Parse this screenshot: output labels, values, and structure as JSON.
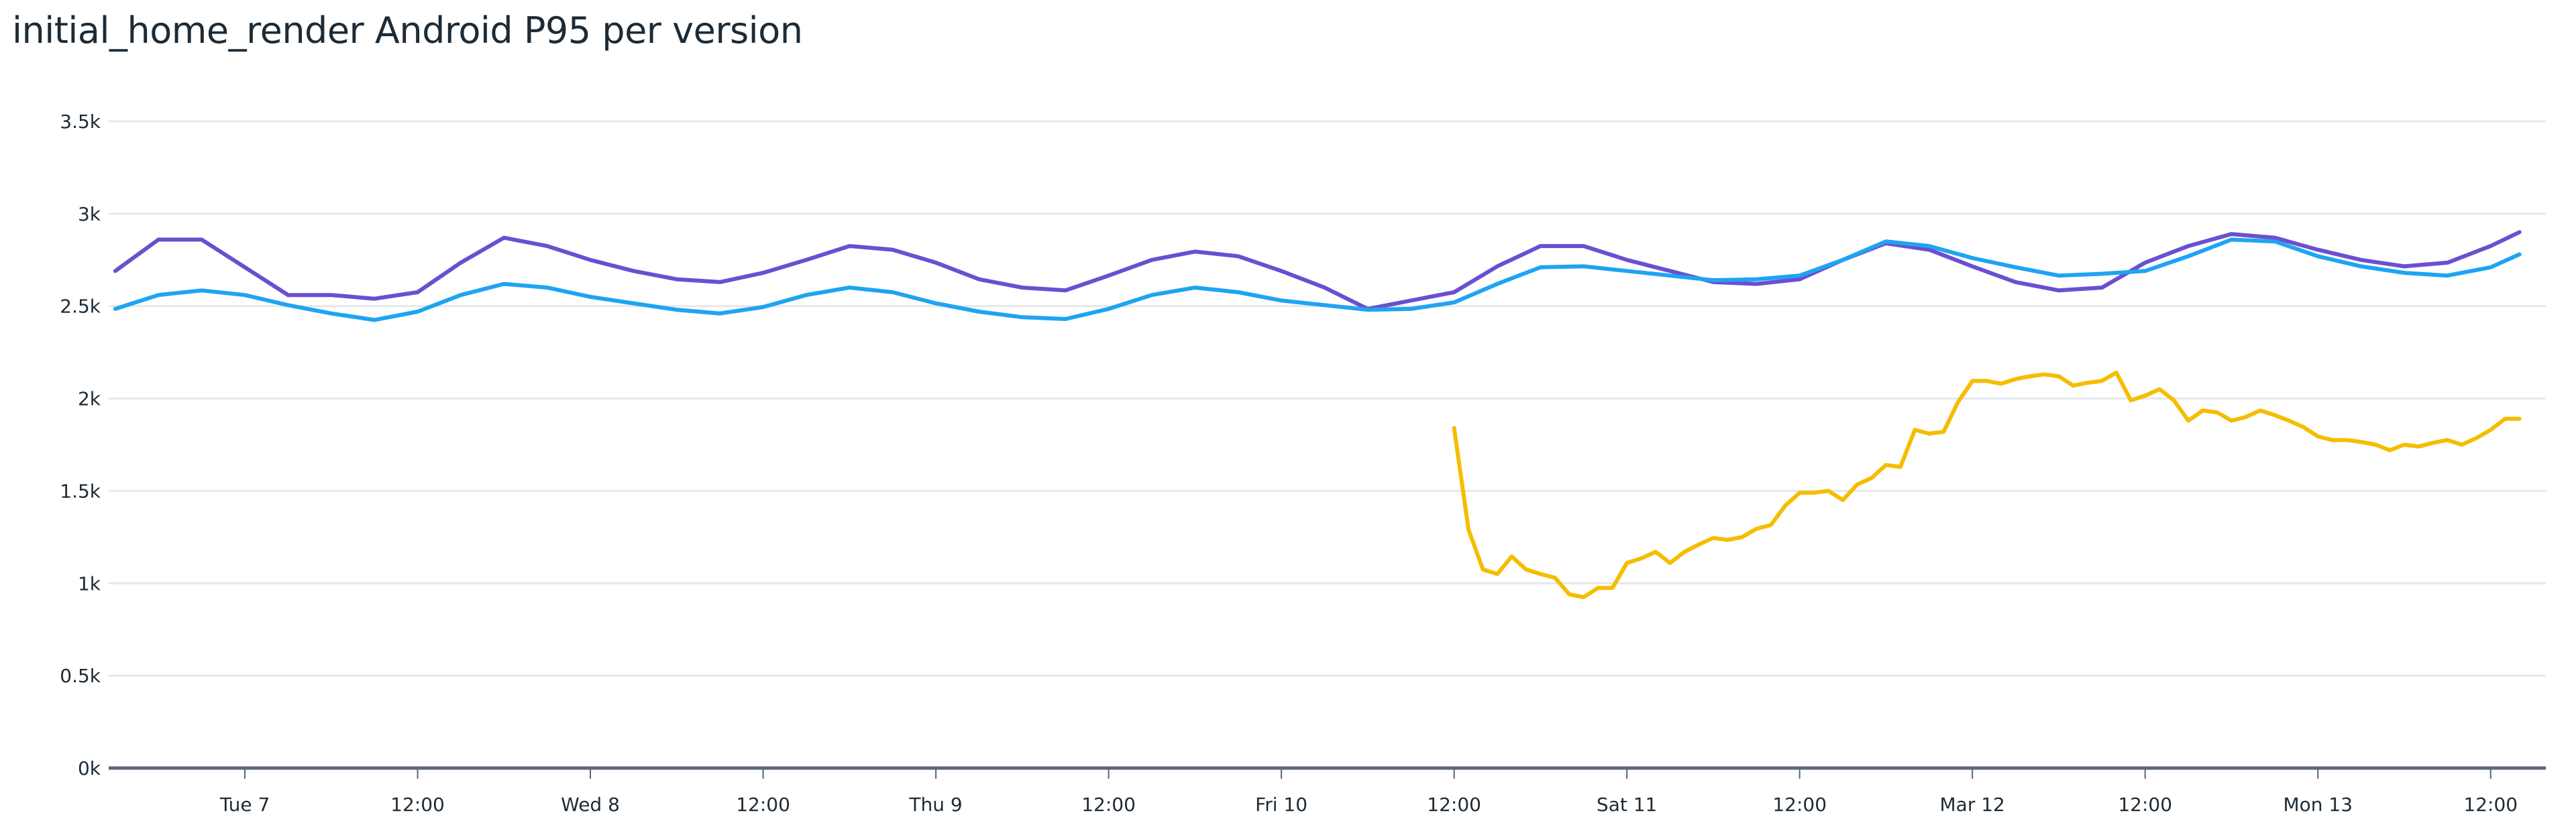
{
  "chart_data": {
    "type": "line",
    "title": "initial_home_render Android P95 per version",
    "xlabel": "",
    "ylabel": "",
    "ylim": [
      0,
      3500
    ],
    "grid": true,
    "legend": "none",
    "y_ticks": [
      "0k",
      "0.5k",
      "1k",
      "1.5k",
      "2k",
      "2.5k",
      "3k",
      "3.5k"
    ],
    "y_tick_values": [
      0,
      500,
      1000,
      1500,
      2000,
      2500,
      3000,
      3500
    ],
    "x_ticks": [
      "Tue 7",
      "12:00",
      "Wed 8",
      "12:00",
      "Thu 9",
      "12:00",
      "Fri 10",
      "12:00",
      "Sat 11",
      "12:00",
      "Mar 12",
      "12:00",
      "Mon 13",
      "12:00"
    ],
    "x_tick_values": [
      "Mar 7 00:00",
      "Mar 7 12:00",
      "Mar 8 00:00",
      "Mar 8 12:00",
      "Mar 9 00:00",
      "Mar 9 12:00",
      "Mar 10 00:00",
      "Mar 10 12:00",
      "Mar 11 00:00",
      "Mar 11 12:00",
      "Mar 12 00:00",
      "Mar 12 12:00",
      "Mar 13 00:00",
      "Mar 13 12:00"
    ],
    "series": [
      {
        "color": "#6b4fd1",
        "x": [
          "Mar 6 15:00",
          "Mar 6 18:00",
          "Mar 6 21:00",
          "Mar 7 00:00",
          "Mar 7 03:00",
          "Mar 7 06:00",
          "Mar 7 09:00",
          "Mar 7 12:00",
          "Mar 7 15:00",
          "Mar 7 18:00",
          "Mar 7 21:00",
          "Mar 8 00:00",
          "Mar 8 03:00",
          "Mar 8 06:00",
          "Mar 8 09:00",
          "Mar 8 12:00",
          "Mar 8 15:00",
          "Mar 8 18:00",
          "Mar 8 21:00",
          "Mar 9 00:00",
          "Mar 9 03:00",
          "Mar 9 06:00",
          "Mar 9 09:00",
          "Mar 9 12:00",
          "Mar 9 15:00",
          "Mar 9 18:00",
          "Mar 9 21:00",
          "Mar 10 00:00",
          "Mar 10 03:00",
          "Mar 10 06:00",
          "Mar 10 09:00",
          "Mar 10 12:00",
          "Mar 10 15:00",
          "Mar 10 18:00",
          "Mar 10 21:00",
          "Mar 11 00:00",
          "Mar 11 03:00",
          "Mar 11 06:00",
          "Mar 11 09:00",
          "Mar 11 12:00",
          "Mar 11 15:00",
          "Mar 11 18:00",
          "Mar 11 21:00",
          "Mar 12 00:00",
          "Mar 12 03:00",
          "Mar 12 06:00",
          "Mar 12 09:00",
          "Mar 12 12:00",
          "Mar 12 15:00",
          "Mar 12 18:00",
          "Mar 12 21:00",
          "Mar 13 00:00",
          "Mar 13 03:00",
          "Mar 13 06:00",
          "Mar 13 09:00",
          "Mar 13 12:00",
          "Mar 13 14:00"
        ],
        "values": [
          2690,
          2860,
          2860,
          2710,
          2560,
          2560,
          2540,
          2575,
          2735,
          2870,
          2825,
          2750,
          2690,
          2645,
          2630,
          2680,
          2750,
          2825,
          2805,
          2735,
          2645,
          2600,
          2585,
          2665,
          2750,
          2795,
          2770,
          2690,
          2600,
          2485,
          2530,
          2575,
          2715,
          2825,
          2825,
          2750,
          2690,
          2630,
          2620,
          2645,
          2750,
          2840,
          2805,
          2715,
          2630,
          2585,
          2600,
          2735,
          2825,
          2890,
          2870,
          2805,
          2750,
          2715,
          2735,
          2825,
          2900
        ]
      },
      {
        "color": "#1ea4f2",
        "x": [
          "Mar 6 15:00",
          "Mar 6 18:00",
          "Mar 6 21:00",
          "Mar 7 00:00",
          "Mar 7 03:00",
          "Mar 7 06:00",
          "Mar 7 09:00",
          "Mar 7 12:00",
          "Mar 7 15:00",
          "Mar 7 18:00",
          "Mar 7 21:00",
          "Mar 8 00:00",
          "Mar 8 03:00",
          "Mar 8 06:00",
          "Mar 8 09:00",
          "Mar 8 12:00",
          "Mar 8 15:00",
          "Mar 8 18:00",
          "Mar 8 21:00",
          "Mar 9 00:00",
          "Mar 9 03:00",
          "Mar 9 06:00",
          "Mar 9 09:00",
          "Mar 9 12:00",
          "Mar 9 15:00",
          "Mar 9 18:00",
          "Mar 9 21:00",
          "Mar 10 00:00",
          "Mar 10 03:00",
          "Mar 10 06:00",
          "Mar 10 09:00",
          "Mar 10 12:00",
          "Mar 10 15:00",
          "Mar 10 18:00",
          "Mar 10 21:00",
          "Mar 11 00:00",
          "Mar 11 03:00",
          "Mar 11 06:00",
          "Mar 11 09:00",
          "Mar 11 12:00",
          "Mar 11 15:00",
          "Mar 11 18:00",
          "Mar 11 21:00",
          "Mar 12 00:00",
          "Mar 12 03:00",
          "Mar 12 06:00",
          "Mar 12 09:00",
          "Mar 12 12:00",
          "Mar 12 15:00",
          "Mar 12 18:00",
          "Mar 12 21:00",
          "Mar 13 00:00",
          "Mar 13 03:00",
          "Mar 13 06:00",
          "Mar 13 09:00",
          "Mar 13 12:00",
          "Mar 13 14:00"
        ],
        "values": [
          2485,
          2560,
          2585,
          2560,
          2505,
          2460,
          2425,
          2470,
          2560,
          2620,
          2600,
          2550,
          2515,
          2480,
          2460,
          2495,
          2560,
          2600,
          2575,
          2515,
          2470,
          2440,
          2430,
          2485,
          2560,
          2600,
          2575,
          2530,
          2505,
          2480,
          2485,
          2520,
          2620,
          2710,
          2715,
          2690,
          2665,
          2640,
          2645,
          2665,
          2750,
          2850,
          2825,
          2760,
          2710,
          2665,
          2675,
          2690,
          2770,
          2860,
          2850,
          2770,
          2715,
          2680,
          2665,
          2710,
          2780
        ]
      },
      {
        "color": "#f5bd00",
        "x": [
          "Mar 10 12:00",
          "Mar 10 13:00",
          "Mar 10 14:00",
          "Mar 10 15:00",
          "Mar 10 16:00",
          "Mar 10 17:00",
          "Mar 10 18:00",
          "Mar 10 19:00",
          "Mar 10 20:00",
          "Mar 10 21:00",
          "Mar 10 22:00",
          "Mar 10 23:00",
          "Mar 11 00:00",
          "Mar 11 01:00",
          "Mar 11 02:00",
          "Mar 11 03:00",
          "Mar 11 04:00",
          "Mar 11 05:00",
          "Mar 11 06:00",
          "Mar 11 07:00",
          "Mar 11 08:00",
          "Mar 11 09:00",
          "Mar 11 10:00",
          "Mar 11 11:00",
          "Mar 11 12:00",
          "Mar 11 13:00",
          "Mar 11 14:00",
          "Mar 11 15:00",
          "Mar 11 16:00",
          "Mar 11 17:00",
          "Mar 11 18:00",
          "Mar 11 19:00",
          "Mar 11 20:00",
          "Mar 11 21:00",
          "Mar 11 22:00",
          "Mar 11 23:00",
          "Mar 12 00:00",
          "Mar 12 01:00",
          "Mar 12 02:00",
          "Mar 12 03:00",
          "Mar 12 04:00",
          "Mar 12 05:00",
          "Mar 12 06:00",
          "Mar 12 07:00",
          "Mar 12 08:00",
          "Mar 12 09:00",
          "Mar 12 10:00",
          "Mar 12 11:00",
          "Mar 12 12:00",
          "Mar 12 13:00",
          "Mar 12 14:00",
          "Mar 12 15:00",
          "Mar 12 16:00",
          "Mar 12 17:00",
          "Mar 12 18:00",
          "Mar 12 19:00",
          "Mar 12 20:00",
          "Mar 12 21:00",
          "Mar 12 22:00",
          "Mar 12 23:00",
          "Mar 13 00:00",
          "Mar 13 01:00",
          "Mar 13 02:00",
          "Mar 13 03:00",
          "Mar 13 04:00",
          "Mar 13 05:00",
          "Mar 13 06:00",
          "Mar 13 07:00",
          "Mar 13 08:00",
          "Mar 13 09:00",
          "Mar 13 10:00",
          "Mar 13 11:00",
          "Mar 13 12:00",
          "Mar 13 13:00",
          "Mar 13 14:00"
        ],
        "values": [
          1840,
          1290,
          1075,
          1050,
          1145,
          1075,
          1050,
          1030,
          940,
          925,
          975,
          975,
          1110,
          1135,
          1170,
          1110,
          1170,
          1210,
          1245,
          1235,
          1250,
          1295,
          1315,
          1420,
          1490,
          1490,
          1500,
          1450,
          1535,
          1570,
          1640,
          1630,
          1830,
          1810,
          1820,
          1980,
          2095,
          2095,
          2080,
          2105,
          2120,
          2130,
          2120,
          2070,
          2085,
          2095,
          2140,
          1990,
          2015,
          2050,
          1990,
          1880,
          1935,
          1925,
          1880,
          1900,
          1935,
          1910,
          1880,
          1845,
          1795,
          1775,
          1775,
          1765,
          1750,
          1720,
          1750,
          1740,
          1760,
          1775,
          1750,
          1785,
          1830,
          1890,
          1890
        ]
      }
    ]
  }
}
